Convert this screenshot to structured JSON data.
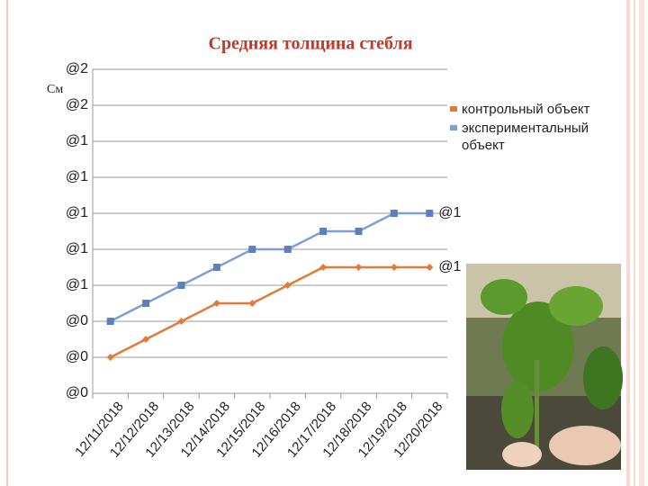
{
  "chart_data": {
    "type": "line",
    "title": "Средняя толщина стебля",
    "y_label": "См",
    "categories": [
      "12/11/2018",
      "12/12/2018",
      "12/13/2018",
      "12/14/2018",
      "12/15/2018",
      "12/16/2018",
      "12/17/2018",
      "12/18/2018",
      "12/19/2018",
      "12/20/2018"
    ],
    "series": [
      {
        "name": "контрольный объект",
        "color": "#e07b39",
        "marker": "diamond",
        "values": [
          0.2,
          0.3,
          0.4,
          0.5,
          0.5,
          0.6,
          0.7,
          0.7,
          0.7,
          0.7
        ],
        "value_labels": [
          null,
          null,
          null,
          null,
          null,
          null,
          null,
          null,
          null,
          "@1"
        ]
      },
      {
        "name": "экспериментальный объект",
        "color": "#7f9fd3",
        "marker": "square",
        "values": [
          0.4,
          0.5,
          0.6,
          0.7,
          0.8,
          0.8,
          0.9,
          0.9,
          1.0,
          1.0
        ],
        "value_labels": [
          null,
          null,
          null,
          null,
          null,
          null,
          null,
          null,
          null,
          "@1"
        ]
      }
    ],
    "ylim": [
      0,
      1.8
    ],
    "yticks": [
      {
        "value": 0,
        "label": "@0"
      },
      {
        "value": 0.2,
        "label": "@0"
      },
      {
        "value": 0.4,
        "label": "@0"
      },
      {
        "value": 0.6,
        "label": "@1"
      },
      {
        "value": 0.8,
        "label": "@1"
      },
      {
        "value": 1.0,
        "label": "@1"
      },
      {
        "value": 1.2,
        "label": "@1"
      },
      {
        "value": 1.4,
        "label": "@1"
      },
      {
        "value": 1.6,
        "label": "@2"
      },
      {
        "value": 1.8,
        "label": "@2"
      }
    ],
    "grid": true,
    "legend": "right"
  }
}
